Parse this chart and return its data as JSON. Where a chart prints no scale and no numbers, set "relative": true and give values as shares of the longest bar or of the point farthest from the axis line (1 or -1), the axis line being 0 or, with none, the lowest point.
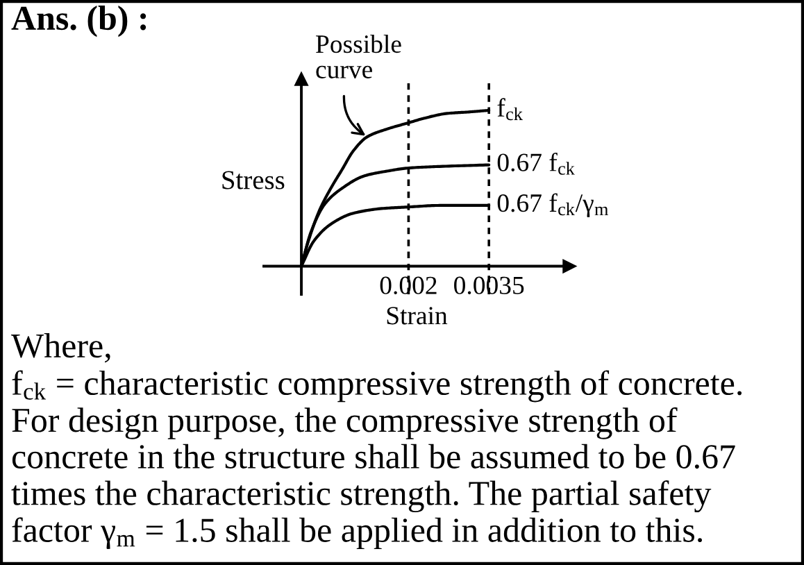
{
  "chart_data": {
    "type": "line",
    "title": "Ans. (b) :",
    "xlabel": "Strain",
    "ylabel": "Stress",
    "relative": true,
    "xlim": [
      -0.0007,
      0.005
    ],
    "xticks": [
      0.002,
      0.0035
    ],
    "series": [
      {
        "name": "f$_{ck}$",
        "color": "#000000",
        "x": [
          0,
          0.00013,
          0.00034,
          0.00055,
          0.00076,
          0.00097,
          0.00123,
          0.0016,
          0.002,
          0.0023,
          0.00272,
          0.00315,
          0.0035
        ],
        "values": [
          0,
          0.16,
          0.36,
          0.5,
          0.62,
          0.74,
          0.83,
          0.88,
          0.92,
          0.95,
          0.98,
          0.99,
          1
        ]
      },
      {
        "name": "0.67 f$_{ck}$",
        "color": "#000000",
        "x": [
          0,
          0.00018,
          0.00044,
          0.00076,
          0.00118,
          0.0016,
          0.002,
          0.00258,
          0.0035
        ],
        "values": [
          0,
          0.22,
          0.4,
          0.5,
          0.58,
          0.61,
          0.63,
          0.64,
          0.65
        ]
      },
      {
        "name": "0.67 f$_{ck}$/γ$_{m}$",
        "color": "#000000",
        "x": [
          0,
          0.00023,
          0.00055,
          0.00097,
          0.0015,
          0.002,
          0.00258,
          0.0035
        ],
        "values": [
          0,
          0.16,
          0.27,
          0.34,
          0.37,
          0.38,
          0.39,
          0.39
        ]
      }
    ],
    "ref_lines": [
      {
        "axis": "x",
        "value": 0.002,
        "line_style": "dashed",
        "color": "#000000"
      },
      {
        "axis": "x",
        "value": 0.0035,
        "line_style": "dashed",
        "color": "#000000"
      }
    ],
    "annotations": [
      {
        "text": "Possible\ncurve",
        "x": 0.00123,
        "y": 0.83
      },
      "Where,",
      "f$_{ck}$ = characteristic compressive strength of concrete.",
      "For design purpose, the compressive strength of\nconcrete in the structure shall be assumed to be 0.67\ntimes the characteristic strength. The partial safety\nfactor γ$_{m}$ = 1.5 shall be applied in addition to this."
    ]
  }
}
